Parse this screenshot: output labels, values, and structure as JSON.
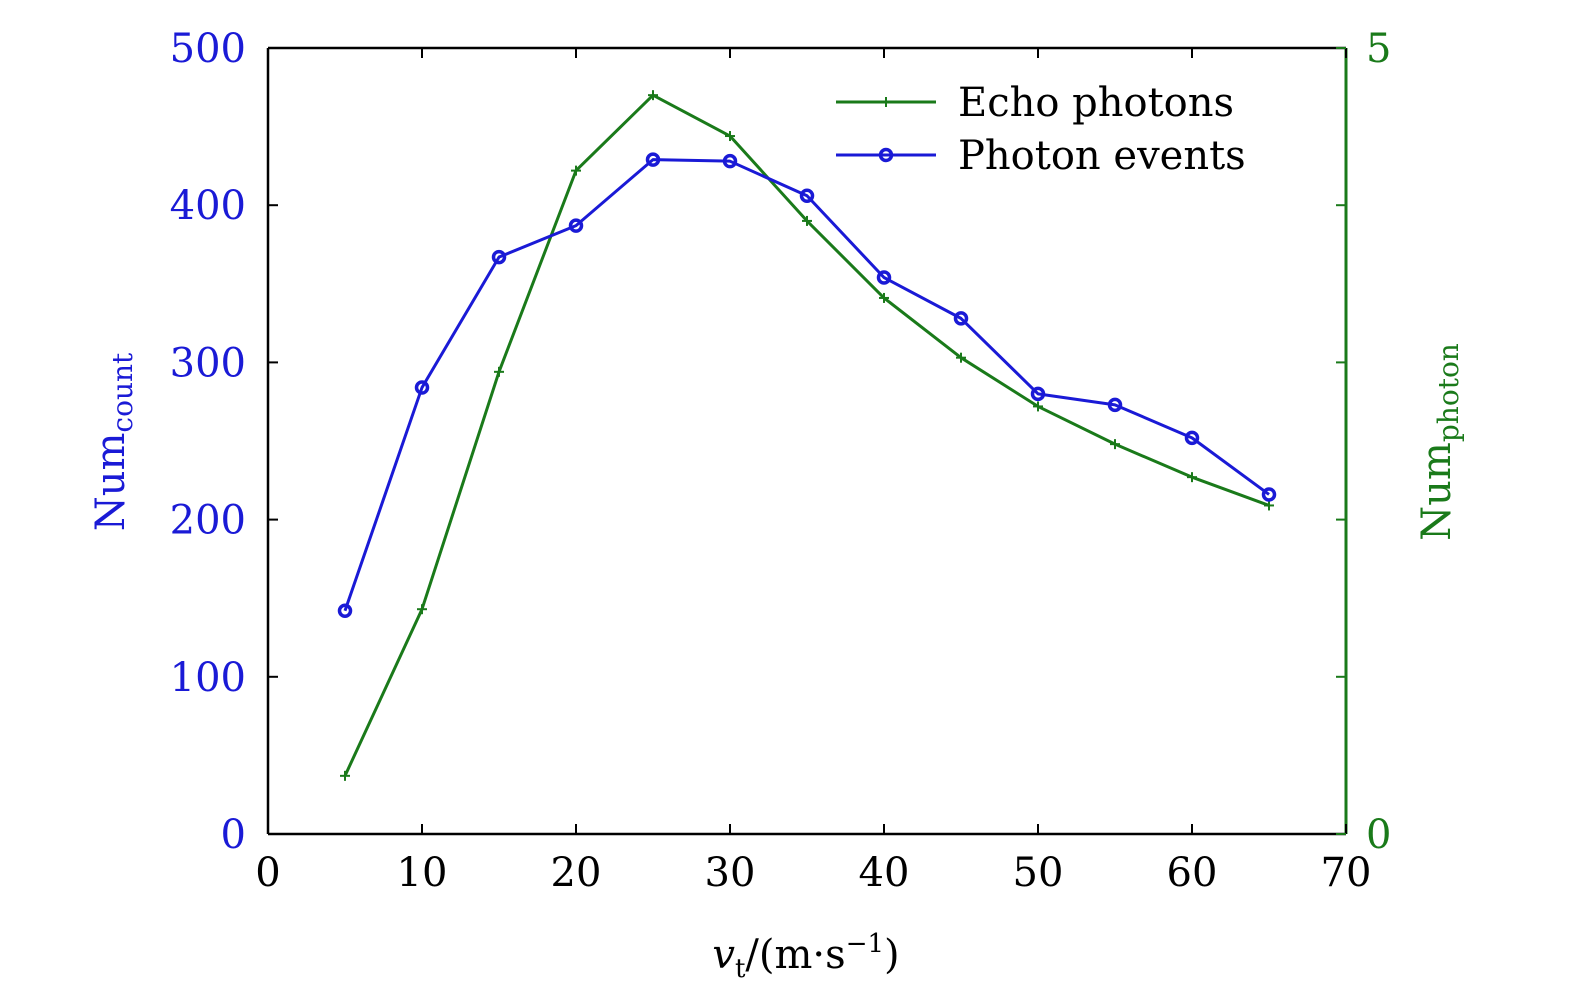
{
  "chart_data": {
    "type": "line",
    "x": [
      5,
      10,
      15,
      20,
      25,
      30,
      35,
      40,
      45,
      50,
      55,
      60,
      65
    ],
    "xlabel": {
      "main": "v",
      "sub": "t",
      "rest": "/(m·s",
      "sup": "−1",
      "close": ")"
    },
    "xlim": [
      0,
      70
    ],
    "xticks": [
      "0",
      "10",
      "20",
      "30",
      "40",
      "50",
      "60",
      "70"
    ],
    "y_left": {
      "label_main": "Num",
      "label_sub": "count",
      "lim": [
        0,
        500
      ],
      "ticks": [
        "0",
        "100",
        "200",
        "300",
        "400",
        "500"
      ],
      "color": "#1a1ad6"
    },
    "y_right": {
      "label_main": "Num",
      "label_sub": "photon",
      "lim": [
        0,
        5
      ],
      "ticks": [
        "0",
        "5"
      ],
      "color": "#1a7a1a"
    },
    "series": [
      {
        "name": "Echo photons",
        "axis": "right",
        "marker": "plus",
        "color": "#1a7a1a",
        "values": [
          0.37,
          1.43,
          2.94,
          4.22,
          4.7,
          4.44,
          3.9,
          3.41,
          3.03,
          2.72,
          2.48,
          2.27,
          2.09
        ]
      },
      {
        "name": "Photon events",
        "axis": "left",
        "marker": "circle",
        "color": "#1a1ad6",
        "values": [
          142,
          284,
          367,
          387,
          429,
          428,
          406,
          354,
          328,
          280,
          273,
          252,
          216
        ]
      }
    ],
    "legend_position": "top-right"
  }
}
